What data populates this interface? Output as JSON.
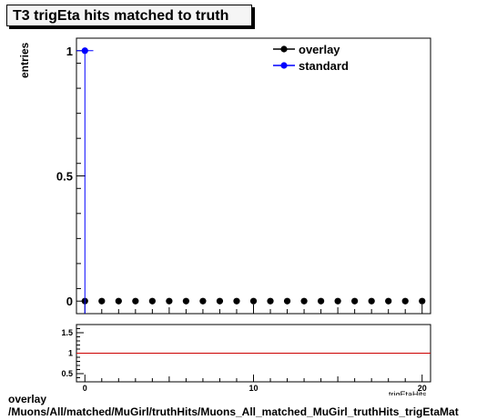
{
  "title": "T3 trigEta hits matched to truth",
  "footer": {
    "line1": "overlay",
    "line2": "/Muons/All/matched/MuGirl/truthHits/Muons_All_matched_MuGirl_truthHits_trigEtaMat"
  },
  "chart_data": [
    {
      "type": "scatter",
      "xlabel": "trigEtaHits",
      "ylabel": "entries",
      "xlim": [
        -0.5,
        20.5
      ],
      "ylim": [
        -0.05,
        1.05
      ],
      "yticks": [
        0,
        0.5,
        1
      ],
      "ytick_labels": [
        "0",
        "0.5",
        "1"
      ],
      "legend": {
        "position": "top-right"
      },
      "series": [
        {
          "name": "overlay",
          "color": "#000000",
          "x": [
            0,
            1,
            2,
            3,
            4,
            5,
            6,
            7,
            8,
            9,
            10,
            11,
            12,
            13,
            14,
            15,
            16,
            17,
            18,
            19,
            20
          ],
          "values": [
            0,
            0,
            0,
            0,
            0,
            0,
            0,
            0,
            0,
            0,
            0,
            0,
            0,
            0,
            0,
            0,
            0,
            0,
            0,
            0,
            0
          ]
        },
        {
          "name": "standard",
          "color": "#0000ff",
          "x": [
            0
          ],
          "values": [
            1
          ]
        }
      ]
    },
    {
      "type": "line",
      "xlim": [
        -0.5,
        20.5
      ],
      "ylim": [
        0.3,
        1.7
      ],
      "yticks": [
        0.5,
        1,
        1.5
      ],
      "ytick_labels": [
        "0.5",
        "1",
        "1.5"
      ],
      "xticks": [
        0,
        10,
        20
      ],
      "xtick_labels": [
        "0",
        "10",
        "20"
      ],
      "reference_line": {
        "y": 1,
        "color": "#cc0000"
      }
    }
  ]
}
